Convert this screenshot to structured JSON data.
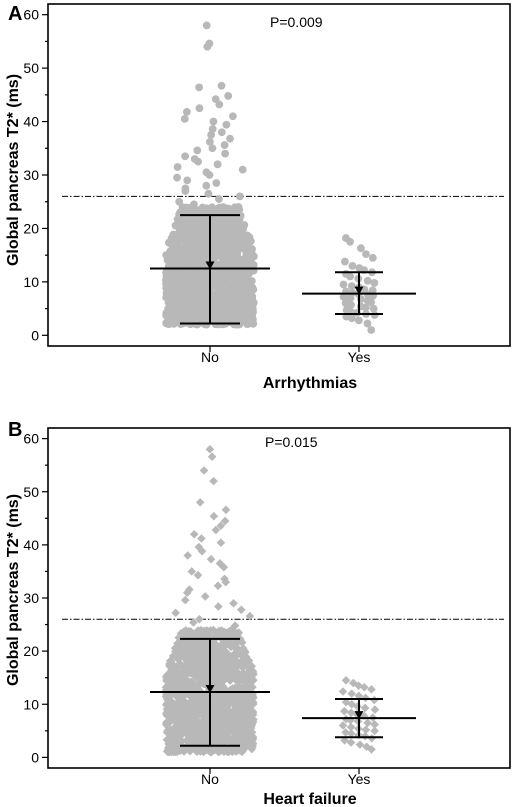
{
  "chart_data": [
    {
      "type": "scatter",
      "panel_label": "A",
      "xlabel": "Arrhythmias",
      "ylabel": "Global pancreas T2* (ms)",
      "categories": [
        "No",
        "Yes"
      ],
      "ylim": [
        -2,
        62
      ],
      "yticks": [
        0,
        10,
        20,
        30,
        40,
        50,
        60
      ],
      "marker": "circle",
      "annotation": "P=0.009",
      "threshold_line": 26,
      "groups": [
        {
          "category": "No",
          "median": 12.5,
          "min": 2,
          "max": 58,
          "lower": 2.2,
          "upper": 22.5,
          "count": 1400,
          "dense_max": 24,
          "high_values": [
            58,
            54.6,
            54,
            46.7,
            46.4,
            44.8,
            44.2,
            43.2,
            42.5,
            41.8,
            41.0,
            40.5,
            40.0,
            39.4,
            38.6,
            38.0,
            37.5,
            36.8,
            36.2,
            35.6,
            35.0,
            34.6,
            34.0,
            33.5,
            33.0,
            32.5,
            32.0,
            31.5,
            31.0,
            30.5,
            30.0,
            29.5,
            29.0,
            28.5,
            28.0,
            27.5,
            27.0,
            26.5,
            26.0,
            25.5,
            25.0,
            24.5
          ]
        },
        {
          "category": "Yes",
          "median": 7.8,
          "min": 1,
          "max": 18,
          "lower": 4,
          "upper": 11.8,
          "count": 45,
          "values": [
            18.2,
            17.5,
            16.3,
            15.2,
            14.5,
            13.8,
            13.0,
            12.6,
            12.2,
            11.8,
            11.5,
            11.0,
            10.6,
            10.2,
            9.8,
            9.5,
            9.2,
            9.0,
            8.6,
            8.4,
            8.2,
            8.0,
            7.8,
            7.6,
            7.4,
            7.2,
            7.0,
            6.8,
            6.5,
            6.2,
            6.0,
            5.7,
            5.4,
            5.2,
            5.0,
            4.7,
            4.4,
            4.2,
            4.0,
            3.8,
            3.5,
            3.2,
            2.8,
            2.2,
            1.0
          ]
        }
      ]
    },
    {
      "type": "scatter",
      "panel_label": "B",
      "xlabel": "Heart failure",
      "ylabel": "Global pancreas T2* (ms)",
      "categories": [
        "No",
        "Yes"
      ],
      "ylim": [
        -2,
        62
      ],
      "yticks": [
        0,
        10,
        20,
        30,
        40,
        50,
        60
      ],
      "marker": "diamond",
      "annotation": "P=0.015",
      "threshold_line": 26,
      "groups": [
        {
          "category": "No",
          "median": 12.3,
          "min": 1,
          "max": 58,
          "lower": 2.2,
          "upper": 22.3,
          "count": 1400,
          "dense_max": 24,
          "high_values": [
            58,
            56.6,
            54,
            52,
            48,
            46.6,
            45.4,
            44.5,
            43.6,
            42.8,
            42.0,
            41.2,
            40.4,
            39.6,
            38.8,
            38.0,
            37.3,
            36.5,
            35.8,
            35.0,
            34.3,
            33.6,
            33.0,
            32.3,
            31.6,
            31.0,
            30.3,
            29.6,
            29.0,
            28.4,
            27.8,
            27.2,
            26.6,
            26.0,
            25.4,
            24.8
          ]
        },
        {
          "category": "Yes",
          "median": 7.4,
          "min": 1.5,
          "max": 14.5,
          "lower": 3.8,
          "upper": 11,
          "count": 40,
          "values": [
            14.5,
            14.0,
            13.5,
            13.2,
            12.8,
            12.4,
            12.0,
            11.6,
            11.2,
            10.8,
            10.4,
            10.0,
            9.6,
            9.3,
            9.0,
            8.7,
            8.4,
            8.1,
            7.8,
            7.5,
            7.2,
            7.0,
            6.8,
            6.5,
            6.2,
            6.0,
            5.7,
            5.4,
            5.2,
            5.0,
            4.7,
            4.5,
            4.2,
            4.0,
            3.6,
            3.2,
            2.8,
            2.4,
            2.0,
            1.5
          ]
        }
      ]
    }
  ]
}
